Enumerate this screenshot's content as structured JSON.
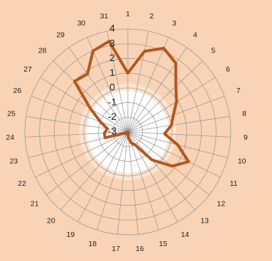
{
  "chart_data": {
    "type": "radar",
    "title": "",
    "categories": [
      "1",
      "2",
      "3",
      "4",
      "5",
      "6",
      "7",
      "8",
      "9",
      "10",
      "11",
      "12",
      "13",
      "14",
      "15",
      "16",
      "17",
      "18",
      "19",
      "20",
      "21",
      "22",
      "23",
      "24",
      "25",
      "26",
      "27",
      "28",
      "29",
      "30",
      "31"
    ],
    "radial_axis": {
      "min": -3,
      "max": 4,
      "ticks": [
        "-3",
        "-2",
        "-1",
        "0",
        "1",
        "2",
        "3",
        "4"
      ]
    },
    "series": [
      {
        "values": [
          1.0,
          2.6,
          3.2,
          2.7,
          1.5,
          0.9,
          0.3,
          0.0,
          -0.5,
          0.5,
          1.6,
          0.8,
          -0.5,
          -2.0,
          -2.2,
          -2.6,
          -3.0,
          -3.0,
          -2.9,
          -3.0,
          -2.8,
          -2.9,
          -1.4,
          -1.4,
          -1.6,
          -1.0,
          0.0,
          2.0,
          1.8,
          3.0,
          3.3
        ]
      }
    ],
    "colors": {
      "background": "#f9d3b6",
      "plot_fill": "#ffffff",
      "zero_band": "#fde4cf",
      "grid": "#9a9a9a",
      "line": "#b5571b"
    }
  }
}
